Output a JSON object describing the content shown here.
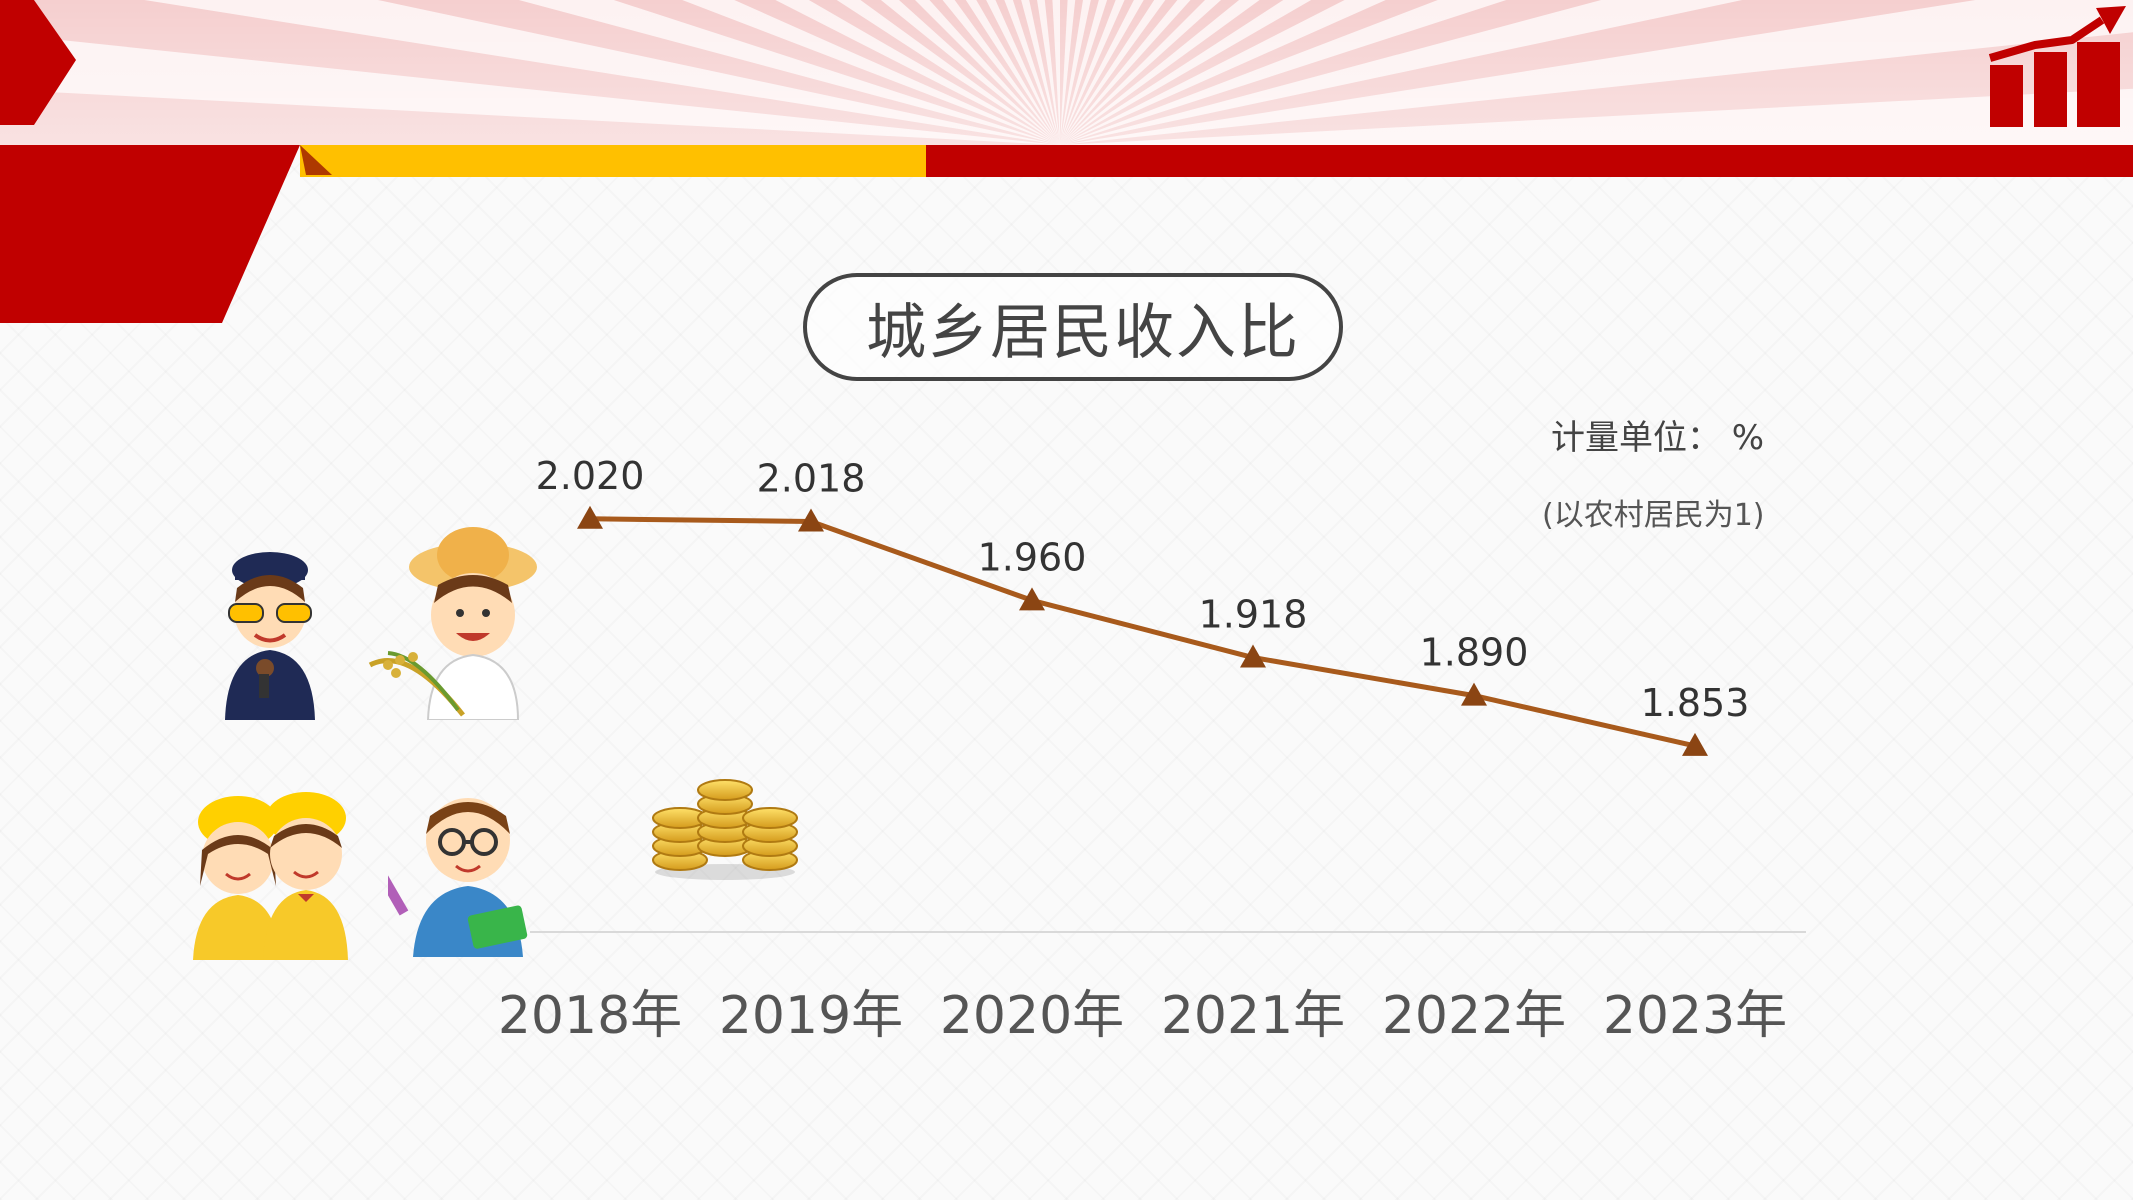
{
  "slide": {
    "title": "城乡居民收入比",
    "unit_label": "计量单位：  %",
    "base_note": "(以农村居民为1)",
    "colors": {
      "brand_red": "#c00000",
      "gold": "#ffc000",
      "line": "#a85a1c",
      "marker": "#8b4513",
      "text": "#444444"
    },
    "icons": [
      "bar-chart-growth-icon",
      "officer-figure",
      "farmer-figure",
      "students-figure",
      "teacher-figure",
      "gold-coins-icon"
    ]
  },
  "chart_data": {
    "type": "line",
    "title": "城乡居民收入比",
    "categories": [
      "2018年",
      "2019年",
      "2020年",
      "2021年",
      "2022年",
      "2023年"
    ],
    "series": [
      {
        "values": [
          2.02,
          2.018,
          1.96,
          1.918,
          1.89,
          1.853
        ]
      }
    ],
    "data_labels": [
      "2.020",
      "2.018",
      "1.960",
      "1.918",
      "1.890",
      "1.853"
    ],
    "unit": "%",
    "ylim": [
      1.5,
      2.1
    ],
    "grid": false,
    "legend": "none",
    "marker": "triangle"
  }
}
